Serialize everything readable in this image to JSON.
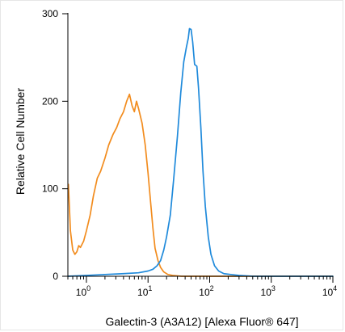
{
  "chart_data": {
    "type": "line",
    "title": "",
    "xlabel": "Galectin-3 (A3A12) [Alexa Fluor® 647]",
    "ylabel": "Relative Cell Number",
    "x_scale": "log",
    "xlim": [
      0.5,
      10000
    ],
    "ylim": [
      0,
      300
    ],
    "x_ticks": [
      {
        "value": 1,
        "base": "10",
        "exp": "0"
      },
      {
        "value": 10,
        "base": "10",
        "exp": "1"
      },
      {
        "value": 100,
        "base": "10",
        "exp": "2"
      },
      {
        "value": 1000,
        "base": "10",
        "exp": "3"
      },
      {
        "value": 10000,
        "base": "10",
        "exp": "4"
      }
    ],
    "y_ticks": [
      {
        "value": 0,
        "label": "0"
      },
      {
        "value": 100,
        "label": "100"
      },
      {
        "value": 200,
        "label": "200"
      },
      {
        "value": 300,
        "label": "300"
      }
    ],
    "grid": false,
    "legend": "none",
    "series": [
      {
        "color": "#F28C1E",
        "points": [
          [
            0.51,
            105
          ],
          [
            0.55,
            52
          ],
          [
            0.6,
            30
          ],
          [
            0.65,
            25
          ],
          [
            0.7,
            28
          ],
          [
            0.75,
            35
          ],
          [
            0.8,
            33
          ],
          [
            0.9,
            40
          ],
          [
            1.0,
            52
          ],
          [
            1.15,
            70
          ],
          [
            1.3,
            92
          ],
          [
            1.5,
            112
          ],
          [
            1.7,
            120
          ],
          [
            2.0,
            135
          ],
          [
            2.3,
            150
          ],
          [
            2.7,
            162
          ],
          [
            3.1,
            170
          ],
          [
            3.5,
            180
          ],
          [
            4.0,
            188
          ],
          [
            4.5,
            200
          ],
          [
            5.0,
            208
          ],
          [
            5.5,
            195
          ],
          [
            6.0,
            188
          ],
          [
            6.5,
            200
          ],
          [
            7.0,
            192
          ],
          [
            8.0,
            175
          ],
          [
            9.0,
            150
          ],
          [
            10.0,
            118
          ],
          [
            11.0,
            85
          ],
          [
            12.0,
            55
          ],
          [
            13.0,
            32
          ],
          [
            14.5,
            18
          ],
          [
            16.0,
            10
          ],
          [
            18.0,
            5
          ],
          [
            21.0,
            2
          ],
          [
            25.0,
            1
          ],
          [
            35.0,
            0
          ],
          [
            10000,
            0
          ]
        ]
      },
      {
        "color": "#1F8ADB",
        "points": [
          [
            0.5,
            0
          ],
          [
            1.0,
            1
          ],
          [
            2.0,
            2
          ],
          [
            4.0,
            3
          ],
          [
            7.0,
            4
          ],
          [
            10.0,
            6
          ],
          [
            12.0,
            8
          ],
          [
            14.0,
            12
          ],
          [
            16.0,
            18
          ],
          [
            18.0,
            30
          ],
          [
            20.0,
            45
          ],
          [
            23.0,
            70
          ],
          [
            26.0,
            110
          ],
          [
            30.0,
            160
          ],
          [
            34.0,
            210
          ],
          [
            38.0,
            245
          ],
          [
            42.0,
            262
          ],
          [
            45.0,
            272
          ],
          [
            47.0,
            283
          ],
          [
            50.0,
            282
          ],
          [
            53.0,
            268
          ],
          [
            57.0,
            242
          ],
          [
            62.0,
            240
          ],
          [
            66.0,
            215
          ],
          [
            72.0,
            170
          ],
          [
            78.0,
            120
          ],
          [
            85.0,
            80
          ],
          [
            95.0,
            45
          ],
          [
            105.0,
            25
          ],
          [
            120.0,
            12
          ],
          [
            140.0,
            6
          ],
          [
            170.0,
            3
          ],
          [
            220.0,
            2
          ],
          [
            300.0,
            1
          ],
          [
            500.0,
            0
          ],
          [
            10000,
            0
          ]
        ]
      }
    ]
  }
}
